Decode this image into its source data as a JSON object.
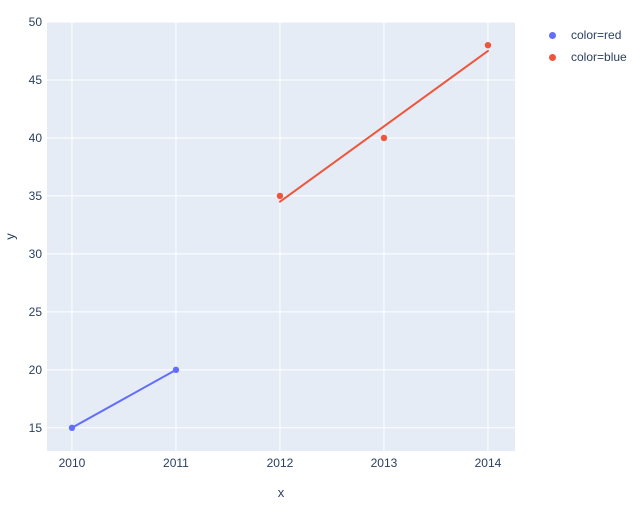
{
  "chart_data": {
    "type": "scatter",
    "title": "",
    "xlabel": "x",
    "ylabel": "y",
    "x_ticks": [
      2010,
      2011,
      2012,
      2013,
      2014
    ],
    "y_ticks": [
      15,
      20,
      25,
      30,
      35,
      40,
      45,
      50
    ],
    "xlim": [
      2009.76,
      2014.26
    ],
    "ylim": [
      13.0,
      50.0
    ],
    "grid": true,
    "legend_position": "outside-top-right",
    "series": [
      {
        "name": "color=red",
        "color": "#636efa",
        "points": [
          {
            "x": 2010,
            "y": 15
          },
          {
            "x": 2011,
            "y": 20
          }
        ],
        "trendline": {
          "x1": 2010,
          "y1": 15,
          "x2": 2011,
          "y2": 20
        }
      },
      {
        "name": "color=blue",
        "color": "#ef553b",
        "points": [
          {
            "x": 2012,
            "y": 35
          },
          {
            "x": 2013,
            "y": 40
          },
          {
            "x": 2014,
            "y": 48
          }
        ],
        "trendline": {
          "x1": 2012,
          "y1": 34.5,
          "x2": 2014,
          "y2": 47.5
        }
      }
    ],
    "colors": {
      "plot_bg": "#e5ecf6",
      "grid": "#ffffff",
      "text": "#2a3f5f",
      "paper_bg": "#ffffff"
    }
  },
  "legend": {
    "items": [
      {
        "label": "color=red",
        "color": "#636efa"
      },
      {
        "label": "color=blue",
        "color": "#ef553b"
      }
    ]
  }
}
